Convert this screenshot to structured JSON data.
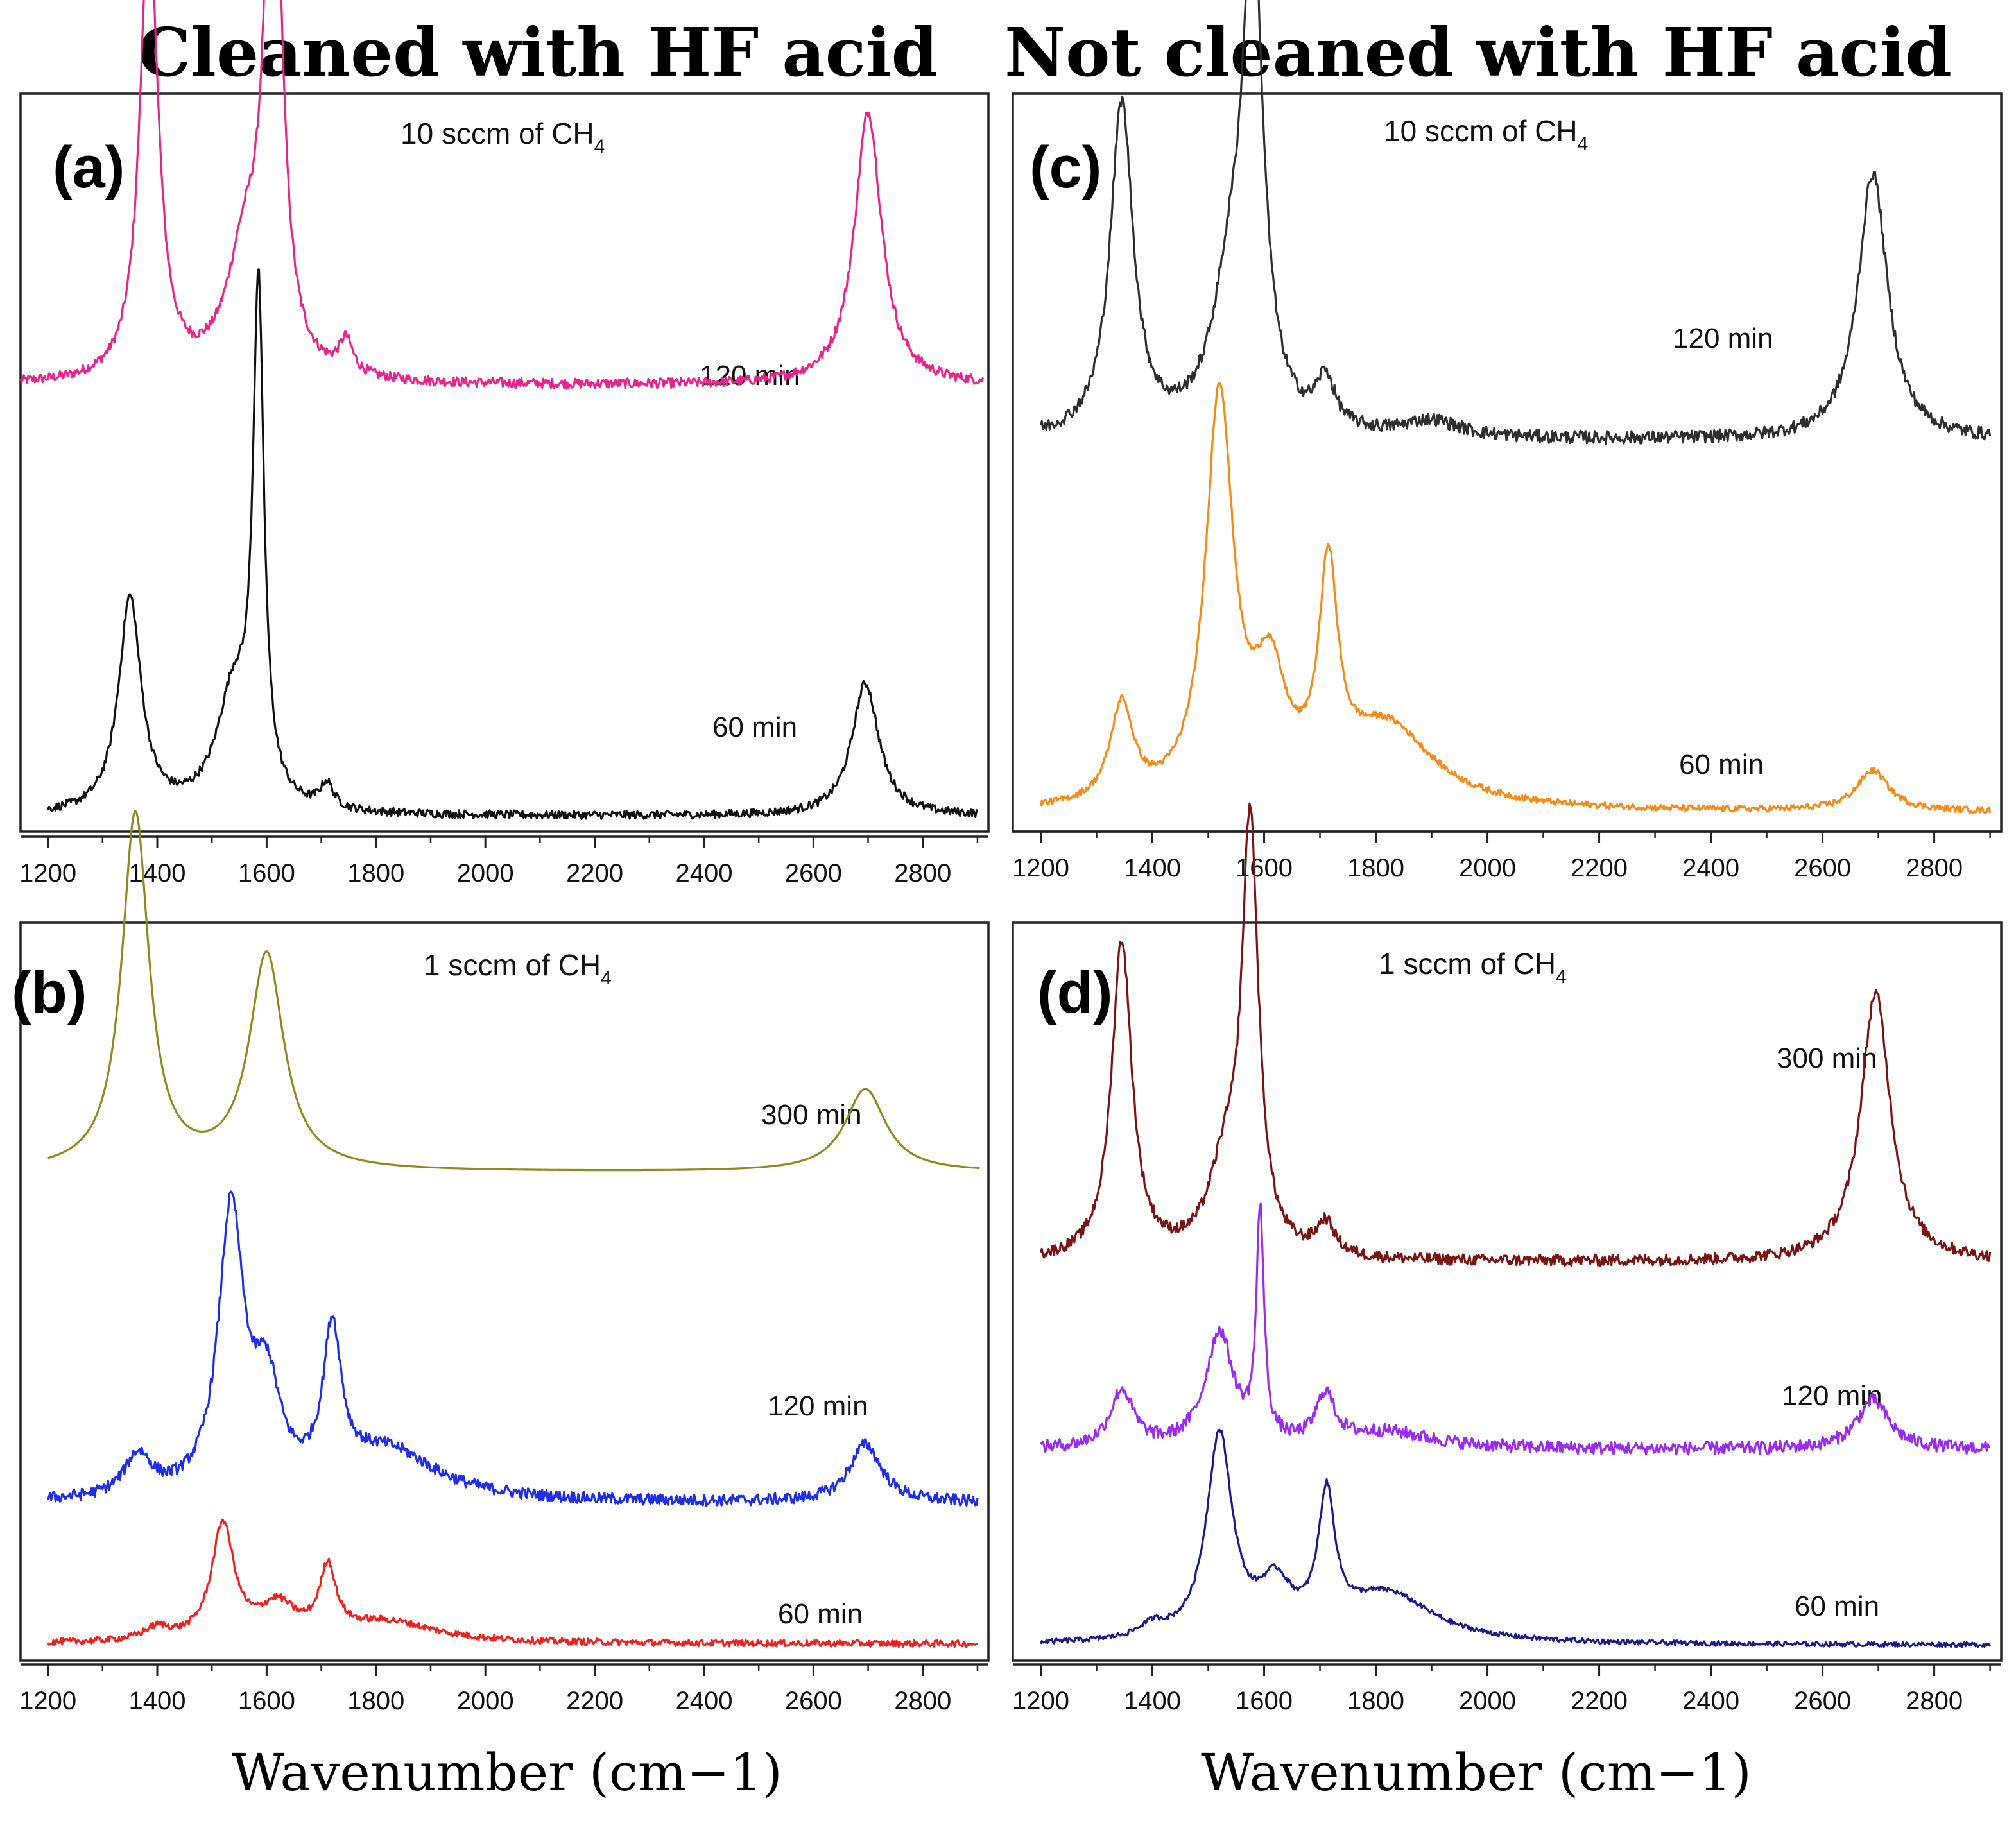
{
  "chart_data": [
    {
      "type": "line",
      "panel_label": "(a)",
      "column_title": "Cleaned with HF acid",
      "condition": "10 sccm of CH4",
      "condition_main": "10 sccm of CH",
      "condition_sub": "4",
      "xlabel": "Wavenumber (cm−1)",
      "ylabel": "",
      "xlim": [
        1150,
        2920
      ],
      "xticks": [
        1200,
        1400,
        1600,
        1800,
        2000,
        2200,
        2400,
        2600,
        2800
      ],
      "series": [
        {
          "name": "120 min",
          "color": "#e8248c",
          "xrange": [
            1150,
            2910
          ],
          "offset": 0.52,
          "noise": 0.006,
          "peaks": [
            [
              1385,
              0.56,
              20
            ],
            [
              1612,
              0.72,
              18
            ],
            [
              1560,
              0.14,
              40
            ],
            [
              1745,
              0.04,
              15
            ],
            [
              2700,
              0.33,
              30
            ]
          ]
        },
        {
          "name": "60 min",
          "color": "#111111",
          "xrange": [
            1200,
            2900
          ],
          "offset": 0.0,
          "noise": 0.005,
          "peaks": [
            [
              1350,
              0.26,
              25
            ],
            [
              1585,
              0.6,
              12
            ],
            [
              1540,
              0.14,
              38
            ],
            [
              1710,
              0.03,
              15
            ],
            [
              2695,
              0.16,
              30
            ]
          ]
        }
      ]
    },
    {
      "type": "line",
      "panel_label": "(b)",
      "condition": "1 sccm of CH4",
      "condition_main": "1 sccm of CH",
      "condition_sub": "4",
      "xlabel": "Wavenumber (cm−1)",
      "ylabel": "",
      "xlim": [
        1150,
        2920
      ],
      "xticks": [
        1200,
        1400,
        1600,
        1800,
        2000,
        2200,
        2400,
        2600,
        2800
      ],
      "series": [
        {
          "name": "300 min",
          "color": "#8b8b1e",
          "xrange": [
            1200,
            2905
          ],
          "offset": 0.57,
          "noise": 0.0,
          "peaks": [
            [
              1360,
              0.43,
              30
            ],
            [
              1600,
              0.26,
              38
            ],
            [
              2695,
              0.1,
              45
            ]
          ]
        },
        {
          "name": "120 min",
          "color": "#1f2ee6",
          "xrange": [
            1200,
            2900
          ],
          "offset": 0.17,
          "noise": 0.007,
          "peaks": [
            [
              1365,
              0.05,
              30
            ],
            [
              1535,
              0.34,
              28
            ],
            [
              1600,
              0.12,
              30
            ],
            [
              1720,
              0.18,
              20
            ],
            [
              1820,
              0.06,
              110
            ],
            [
              2695,
              0.07,
              35
            ]
          ]
        },
        {
          "name": "60 min",
          "color": "#f02020",
          "xrange": [
            1200,
            2900
          ],
          "offset": 0.0,
          "noise": 0.004,
          "peaks": [
            [
              1400,
              0.015,
              30
            ],
            [
              1520,
              0.14,
              25
            ],
            [
              1620,
              0.04,
              40
            ],
            [
              1712,
              0.08,
              18
            ],
            [
              1820,
              0.025,
              110
            ]
          ]
        }
      ]
    },
    {
      "type": "line",
      "panel_label": "(c)",
      "column_title": "Not cleaned with HF acid",
      "condition": "10 sccm of CH4",
      "condition_main": "10 sccm of CH",
      "condition_sub": "4",
      "xlabel": "Wavenumber (cm−1)",
      "ylabel": "",
      "xlim": [
        1150,
        2920
      ],
      "xticks": [
        1200,
        1400,
        1600,
        1800,
        2000,
        2200,
        2400,
        2600,
        2800
      ],
      "series": [
        {
          "name": "120 min",
          "color": "#2e2e2e",
          "xrange": [
            1200,
            2900
          ],
          "offset": 0.46,
          "noise": 0.008,
          "peaks": [
            [
              1345,
              0.41,
              25
            ],
            [
              1580,
              0.58,
              22
            ],
            [
              1540,
              0.16,
              40
            ],
            [
              1710,
              0.06,
              20
            ],
            [
              1900,
              0.02,
              60
            ],
            [
              2690,
              0.33,
              32
            ]
          ]
        },
        {
          "name": "60 min",
          "color": "#f58a15",
          "xrange": [
            1200,
            2900
          ],
          "offset": 0.0,
          "noise": 0.004,
          "peaks": [
            [
              1345,
              0.12,
              25
            ],
            [
              1520,
              0.5,
              30
            ],
            [
              1610,
              0.14,
              35
            ],
            [
              1715,
              0.26,
              20
            ],
            [
              1820,
              0.1,
              100
            ],
            [
              2690,
              0.05,
              35
            ]
          ]
        }
      ]
    },
    {
      "type": "line",
      "panel_label": "(d)",
      "condition": "1 sccm of CH4",
      "condition_main": "1 sccm of CH",
      "condition_sub": "4",
      "xlabel": "Wavenumber (cm−1)",
      "ylabel": "",
      "xlim": [
        1150,
        2920
      ],
      "xticks": [
        1200,
        1400,
        1600,
        1800,
        2000,
        2200,
        2400,
        2600,
        2800
      ],
      "series": [
        {
          "name": "300 min",
          "color": "#7a1414",
          "xrange": [
            1200,
            2900
          ],
          "offset": 0.47,
          "noise": 0.007,
          "peaks": [
            [
              1345,
              0.39,
              22
            ],
            [
              1575,
              0.52,
              18
            ],
            [
              1530,
              0.1,
              35
            ],
            [
              1710,
              0.04,
              20
            ],
            [
              2695,
              0.33,
              32
            ]
          ]
        },
        {
          "name": "120 min",
          "color": "#9a2cf0",
          "xrange": [
            1200,
            2900
          ],
          "offset": 0.24,
          "noise": 0.008,
          "peaks": [
            [
              1345,
              0.07,
              25
            ],
            [
              1520,
              0.14,
              30
            ],
            [
              1593,
              0.28,
              8
            ],
            [
              1710,
              0.06,
              20
            ],
            [
              1820,
              0.02,
              100
            ],
            [
              2690,
              0.06,
              35
            ]
          ]
        },
        {
          "name": "60 min",
          "color": "#1a1a8c",
          "xrange": [
            1200,
            2900
          ],
          "offset": 0.0,
          "noise": 0.003,
          "peaks": [
            [
              1400,
              0.015,
              30
            ],
            [
              1520,
              0.25,
              28
            ],
            [
              1620,
              0.06,
              35
            ],
            [
              1712,
              0.16,
              18
            ],
            [
              1820,
              0.06,
              100
            ]
          ]
        }
      ]
    }
  ]
}
